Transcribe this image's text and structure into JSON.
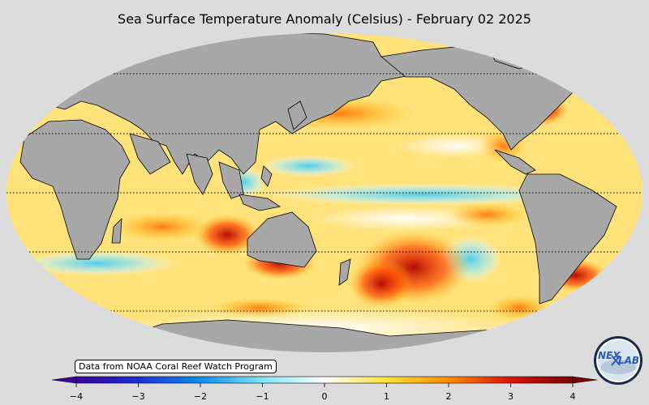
{
  "title": "Sea Surface Temperature Anomaly (Celsius) - February 02 2025",
  "credit": "Data from NOAA Coral Reef Watch Program",
  "colorbar": {
    "ticks": [
      "−4",
      "−3",
      "−2",
      "−1",
      "0",
      "1",
      "2",
      "3",
      "4"
    ],
    "min": -4,
    "max": 4,
    "colors": [
      "#3a00a0",
      "#1a2fd6",
      "#0a8ef0",
      "#7fe6ff",
      "#ffffff",
      "#ffe135",
      "#ff8c00",
      "#e01000",
      "#7a0000"
    ]
  },
  "logo": {
    "name": "nexlab-logo-icon",
    "text_left": "NEX",
    "text_right": "LAB"
  },
  "map": {
    "land_color": "#a8a8a8",
    "ocean_base": "#ffe27a",
    "background": "#dcdcdc"
  }
}
